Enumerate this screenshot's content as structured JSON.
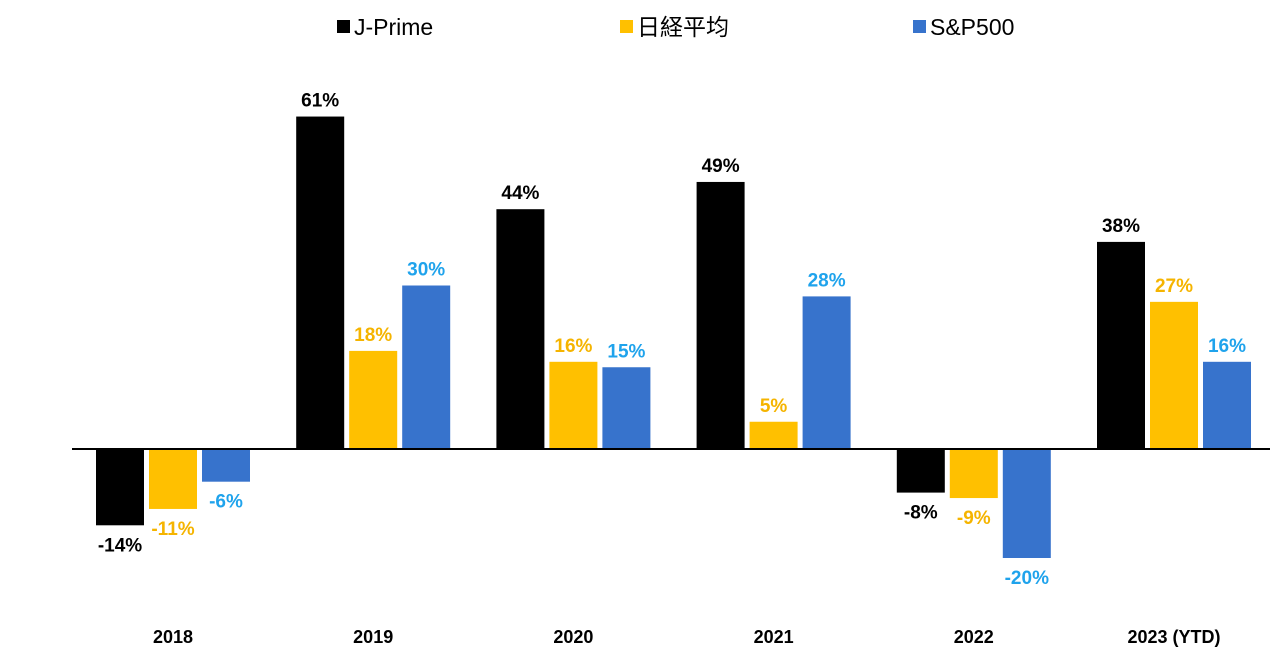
{
  "chart_data": {
    "type": "bar",
    "categories": [
      "2018",
      "2019",
      "2020",
      "2021",
      "2022",
      "2023 (YTD)"
    ],
    "series": [
      {
        "name": "J-Prime",
        "color": "#000000",
        "label_color": "#000000",
        "values": [
          -14,
          61,
          44,
          49,
          -8,
          38
        ],
        "labels": [
          "-14%",
          "61%",
          "44%",
          "49%",
          "-8%",
          "38%"
        ]
      },
      {
        "name": "日経平均",
        "color": "#FFC000",
        "label_color": "#F5B400",
        "values": [
          -11,
          18,
          16,
          5,
          -9,
          27
        ],
        "labels": [
          "-11%",
          "18%",
          "16%",
          "5%",
          "-9%",
          "27%"
        ]
      },
      {
        "name": "S&P500",
        "color": "#3773CC",
        "label_color": "#1FA3EC",
        "values": [
          -6,
          30,
          15,
          28,
          -20,
          16
        ],
        "labels": [
          "-6%",
          "30%",
          "15%",
          "28%",
          "-20%",
          "16%"
        ]
      }
    ],
    "title": "",
    "xlabel": "",
    "ylabel": "",
    "ylim": [
      -26,
      75
    ],
    "grid": false,
    "legend_position": "top-center",
    "axis_color": "#000000"
  }
}
